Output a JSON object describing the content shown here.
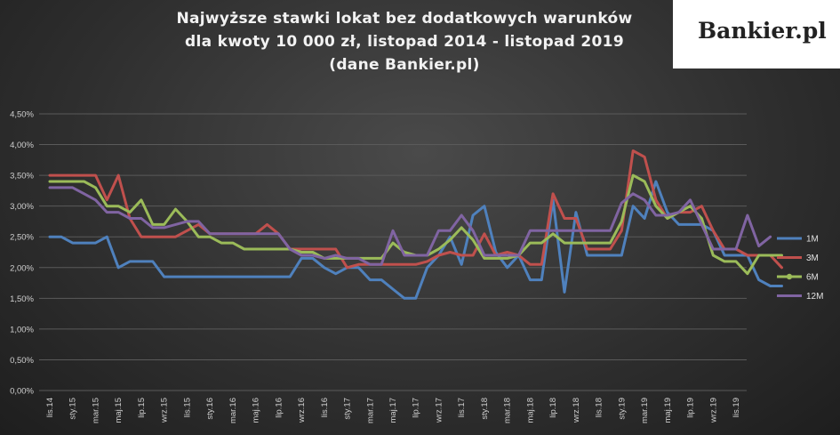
{
  "title": {
    "line1": "Najwyższe stawki lokat bez dodatkowych warunków",
    "line2": "dla kwoty 10 000 zł, listopad 2014 - listopad 2019",
    "line3": "(dane Bankier.pl)"
  },
  "logo": {
    "text": "Bankier.pl"
  },
  "colors": {
    "1M": "#4f81bd",
    "3M": "#c0504d",
    "6M": "#9bbb59",
    "12M": "#8064a2",
    "grid": "#5a5a5a",
    "background": "#3a3a3a"
  },
  "chart_data": {
    "type": "line",
    "title": "Najwyższe stawki lokat bez dodatkowych warunków dla kwoty 10 000 zł, listopad 2014 - listopad 2019 (dane Bankier.pl)",
    "xlabel": "",
    "ylabel": "",
    "ylim": [
      0,
      4.5
    ],
    "grid": true,
    "legend_position": "right",
    "y_ticks": [
      "0,00%",
      "0,50%",
      "1,00%",
      "1,50%",
      "2,00%",
      "2,50%",
      "3,00%",
      "3,50%",
      "4,00%",
      "4,50%"
    ],
    "x_ticks": [
      "lis.14",
      "sty.15",
      "mar.15",
      "maj.15",
      "lip.15",
      "wrz.15",
      "lis.15",
      "sty.16",
      "mar.16",
      "maj.16",
      "lip.16",
      "wrz.16",
      "lis.16",
      "sty.17",
      "mar.17",
      "maj.17",
      "lip.17",
      "wrz.17",
      "lis.17",
      "sty.18",
      "mar.18",
      "maj.18",
      "lip.18",
      "wrz.18",
      "lis.18",
      "sty.19",
      "mar.19",
      "maj.19",
      "lip.19",
      "wrz.19",
      "lis.19"
    ],
    "series": [
      {
        "name": "1M",
        "values": [
          2.5,
          2.5,
          2.4,
          2.4,
          2.4,
          2.5,
          2.0,
          2.1,
          2.1,
          2.1,
          1.85,
          1.85,
          1.85,
          1.85,
          1.85,
          1.85,
          1.85,
          1.85,
          1.85,
          1.85,
          1.85,
          1.85,
          2.15,
          2.15,
          2.0,
          1.9,
          2.0,
          2.0,
          1.8,
          1.8,
          1.65,
          1.5,
          1.5,
          2.0,
          2.2,
          2.5,
          2.05,
          2.85,
          3.0,
          2.25,
          2.0,
          2.2,
          1.8,
          1.8,
          3.1,
          1.6,
          2.9,
          2.2,
          2.2,
          2.2,
          2.2,
          3.0,
          2.8,
          3.4,
          2.9,
          2.7,
          2.7,
          2.7,
          2.6,
          2.2,
          2.2,
          2.2,
          1.8,
          1.7,
          1.7
        ]
      },
      {
        "name": "3M",
        "values": [
          3.5,
          3.5,
          3.5,
          3.5,
          3.5,
          3.1,
          3.5,
          2.8,
          2.5,
          2.5,
          2.5,
          2.5,
          2.6,
          2.7,
          2.55,
          2.55,
          2.55,
          2.55,
          2.55,
          2.7,
          2.55,
          2.3,
          2.3,
          2.3,
          2.3,
          2.3,
          2.0,
          2.05,
          2.05,
          2.05,
          2.05,
          2.05,
          2.05,
          2.1,
          2.2,
          2.25,
          2.2,
          2.2,
          2.55,
          2.2,
          2.25,
          2.2,
          2.05,
          2.05,
          3.2,
          2.8,
          2.8,
          2.3,
          2.3,
          2.3,
          2.6,
          3.9,
          3.8,
          3.1,
          2.8,
          2.9,
          2.9,
          3.0,
          2.6,
          2.3,
          2.3,
          2.2,
          2.2,
          2.2,
          2.0
        ]
      },
      {
        "name": "6M",
        "values": [
          3.4,
          3.4,
          3.4,
          3.4,
          3.3,
          3.0,
          3.0,
          2.9,
          3.1,
          2.7,
          2.7,
          2.95,
          2.75,
          2.5,
          2.5,
          2.4,
          2.4,
          2.3,
          2.3,
          2.3,
          2.3,
          2.3,
          2.25,
          2.25,
          2.15,
          2.15,
          2.15,
          2.15,
          2.15,
          2.15,
          2.4,
          2.25,
          2.2,
          2.2,
          2.3,
          2.45,
          2.65,
          2.45,
          2.15,
          2.15,
          2.15,
          2.2,
          2.4,
          2.4,
          2.55,
          2.4,
          2.4,
          2.4,
          2.4,
          2.4,
          2.75,
          3.5,
          3.4,
          3.0,
          2.8,
          2.9,
          3.0,
          2.8,
          2.2,
          2.1,
          2.1,
          1.9,
          2.2,
          2.2,
          2.2
        ]
      },
      {
        "name": "12M",
        "values": [
          3.3,
          3.3,
          3.3,
          3.2,
          3.1,
          2.9,
          2.9,
          2.8,
          2.8,
          2.65,
          2.65,
          2.7,
          2.75,
          2.75,
          2.55,
          2.55,
          2.55,
          2.55,
          2.55,
          2.55,
          2.55,
          2.3,
          2.2,
          2.2,
          2.15,
          2.2,
          2.15,
          2.15,
          2.05,
          2.05,
          2.6,
          2.2,
          2.2,
          2.2,
          2.6,
          2.6,
          2.85,
          2.6,
          2.2,
          2.2,
          2.2,
          2.2,
          2.6,
          2.6,
          2.6,
          2.6,
          2.6,
          2.6,
          2.6,
          2.6,
          3.05,
          3.2,
          3.1,
          2.85,
          2.85,
          2.9,
          3.1,
          2.7,
          2.3,
          2.3,
          2.3,
          2.85,
          2.35,
          2.5
        ]
      }
    ]
  }
}
